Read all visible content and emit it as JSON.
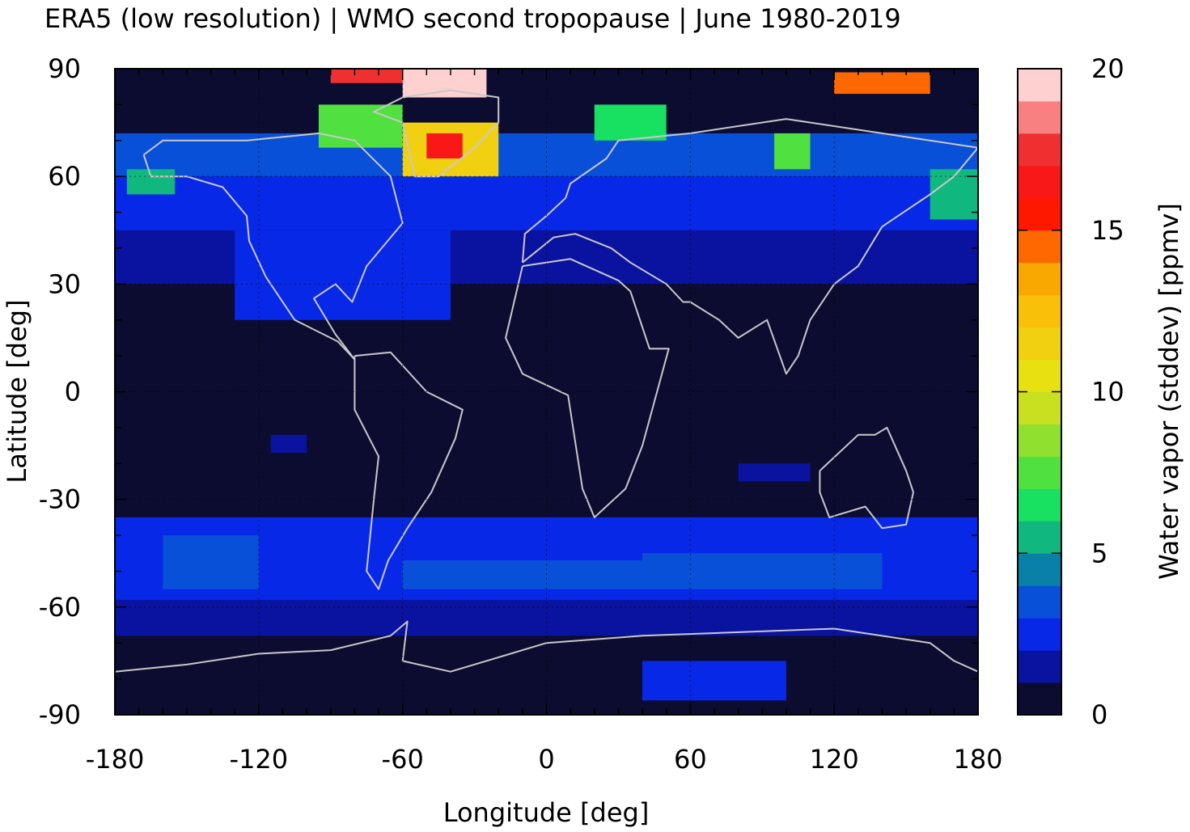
{
  "chart_data": {
    "type": "heatmap",
    "title": "ERA5 (low resolution) | WMO second tropopause | June 1980-2019",
    "xlabel": "Longitude [deg]",
    "ylabel": "Latitude [deg]",
    "colorbar_label": "Water vapor (stddev) [ppmv]",
    "xlim": [
      -180,
      180
    ],
    "ylim": [
      -90,
      90
    ],
    "x_ticks": [
      -180,
      -120,
      -60,
      0,
      60,
      120,
      180
    ],
    "y_ticks": [
      90,
      60,
      30,
      0,
      -30,
      -60,
      -90
    ],
    "x_tick_labels": [
      "-180",
      "-120",
      "-60",
      "0",
      "60",
      "120",
      "180"
    ],
    "y_tick_labels": [
      "90",
      "60",
      "30",
      "0",
      "-30",
      "-60",
      "-90"
    ],
    "colorbar_range": [
      0,
      20
    ],
    "colorbar_ticks": [
      0,
      5,
      10,
      15,
      20
    ],
    "colorbar_tick_labels": [
      "0",
      "5",
      "10",
      "15",
      "20"
    ],
    "colorbar_colors": [
      "#0c0c30",
      "#0a12a0",
      "#0828e8",
      "#0850d8",
      "#0880a8",
      "#10b880",
      "#18e060",
      "#50e040",
      "#90e030",
      "#c8e020",
      "#e8e010",
      "#f0d010",
      "#f8c008",
      "#f8a800",
      "#ff6800",
      "#ff1800",
      "#f81818",
      "#f03030",
      "#f88080",
      "#ffd0d0"
    ],
    "background_value": 0.5,
    "regions": [
      {
        "lon": [
          -180,
          180
        ],
        "lat": [
          30,
          45
        ],
        "value": 1.2
      },
      {
        "lon": [
          -180,
          180
        ],
        "lat": [
          45,
          60
        ],
        "value": 2.4
      },
      {
        "lon": [
          -180,
          180
        ],
        "lat": [
          60,
          72
        ],
        "value": 3.0
      },
      {
        "lon": [
          -180,
          180
        ],
        "lat": [
          -58,
          -35
        ],
        "value": 2.2
      },
      {
        "lon": [
          -180,
          180
        ],
        "lat": [
          -68,
          -58
        ],
        "value": 1.4
      },
      {
        "lon": [
          -130,
          -40
        ],
        "lat": [
          20,
          45
        ],
        "value": 2.2
      },
      {
        "lon": [
          -60,
          -20
        ],
        "lat": [
          60,
          75
        ],
        "value": 11
      },
      {
        "lon": [
          -50,
          -35
        ],
        "lat": [
          65,
          72
        ],
        "value": 16
      },
      {
        "lon": [
          -95,
          -60
        ],
        "lat": [
          68,
          80
        ],
        "value": 7
      },
      {
        "lon": [
          -60,
          -25
        ],
        "lat": [
          82,
          90
        ],
        "value": 20
      },
      {
        "lon": [
          -90,
          -60
        ],
        "lat": [
          86,
          90
        ],
        "value": 17
      },
      {
        "lon": [
          120,
          160
        ],
        "lat": [
          83,
          89
        ],
        "value": 14
      },
      {
        "lon": [
          20,
          50
        ],
        "lat": [
          70,
          80
        ],
        "value": 6
      },
      {
        "lon": [
          95,
          110
        ],
        "lat": [
          62,
          72
        ],
        "value": 7
      },
      {
        "lon": [
          160,
          180
        ],
        "lat": [
          48,
          62
        ],
        "value": 5
      },
      {
        "lon": [
          -175,
          -155
        ],
        "lat": [
          55,
          62
        ],
        "value": 5
      },
      {
        "lon": [
          -160,
          -120
        ],
        "lat": [
          -55,
          -40
        ],
        "value": 3
      },
      {
        "lon": [
          -60,
          40
        ],
        "lat": [
          -55,
          -47
        ],
        "value": 3
      },
      {
        "lon": [
          40,
          140
        ],
        "lat": [
          -55,
          -45
        ],
        "value": 3
      },
      {
        "lon": [
          40,
          100
        ],
        "lat": [
          -86,
          -75
        ],
        "value": 2
      },
      {
        "lon": [
          -115,
          -100
        ],
        "lat": [
          -17,
          -12
        ],
        "value": 1.5
      },
      {
        "lon": [
          80,
          110
        ],
        "lat": [
          -25,
          -20
        ],
        "value": 1.5
      }
    ]
  }
}
